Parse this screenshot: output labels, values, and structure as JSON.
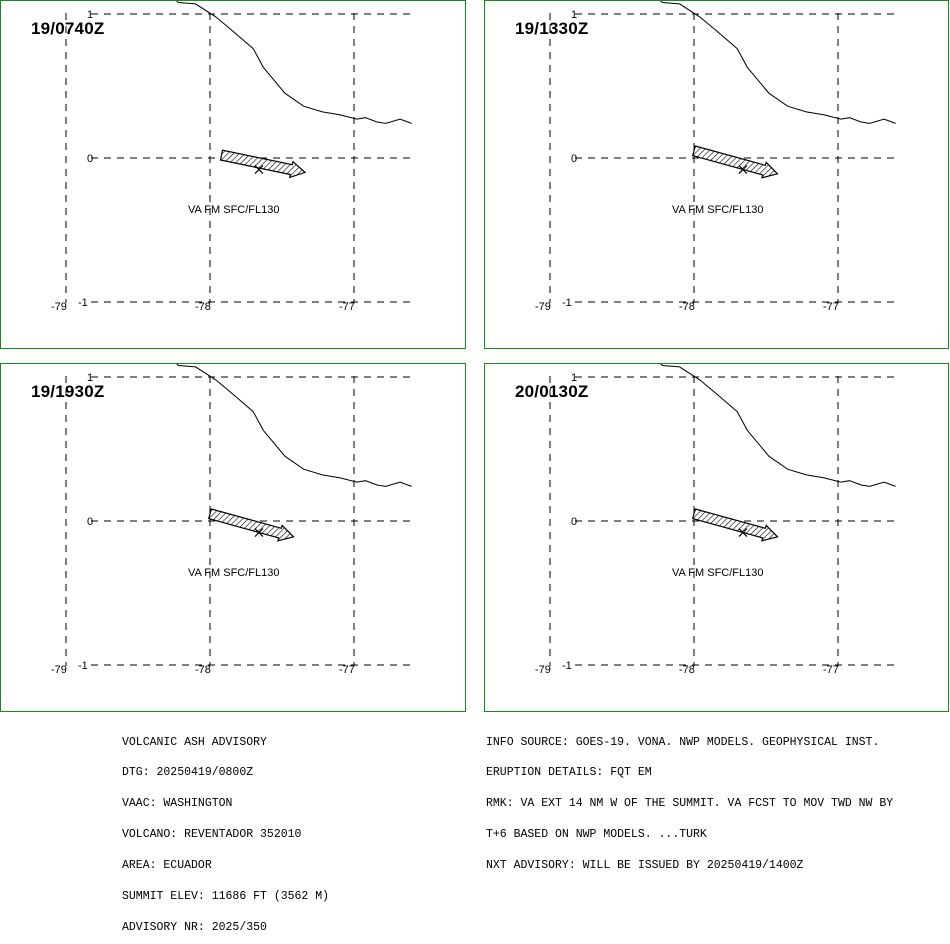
{
  "panels": [
    {
      "time": "19/0740Z",
      "va_label": "VA FM SFC/FL130",
      "arrow": {
        "tail": [
          -77.92,
          0.02
        ],
        "head": [
          -77.34,
          -0.1
        ]
      }
    },
    {
      "time": "19/1330Z",
      "va_label": "VA FM SFC/FL130",
      "arrow": {
        "tail": [
          -78.0,
          0.05
        ],
        "head": [
          -77.42,
          -0.11
        ]
      }
    },
    {
      "time": "19/1930Z",
      "va_label": "VA FM SFC/FL130",
      "arrow": {
        "tail": [
          -78.0,
          0.05
        ],
        "head": [
          -77.42,
          -0.11
        ]
      }
    },
    {
      "time": "20/0130Z",
      "va_label": "VA FM SFC/FL130",
      "arrow": {
        "tail": [
          -78.0,
          0.05
        ],
        "head": [
          -77.42,
          -0.11
        ]
      }
    }
  ],
  "axes": {
    "lon_ticks": [
      "-79",
      "-78",
      "-77"
    ],
    "lat_ticks": [
      "1",
      "0",
      "-1"
    ],
    "lon_values": [
      -79,
      -78,
      -77
    ],
    "lat_values": [
      1,
      0,
      -1
    ]
  },
  "volcano": {
    "lon": -77.66,
    "lat": -0.08,
    "symbol": "volcano-x-marker"
  },
  "coastline": [
    [
      -78.3,
      1.16
    ],
    [
      -78.22,
      1.08
    ],
    [
      -78.1,
      1.07
    ],
    [
      -77.96,
      0.98
    ],
    [
      -77.84,
      0.88
    ],
    [
      -77.7,
      0.76
    ],
    [
      -77.63,
      0.63
    ],
    [
      -77.48,
      0.45
    ],
    [
      -77.35,
      0.36
    ],
    [
      -77.22,
      0.32
    ],
    [
      -77.1,
      0.3
    ],
    [
      -76.98,
      0.27
    ],
    [
      -76.92,
      0.28
    ],
    [
      -76.84,
      0.25
    ],
    [
      -76.78,
      0.24
    ],
    [
      -76.68,
      0.27
    ],
    [
      -76.6,
      0.24
    ]
  ],
  "advisory_left": [
    "VOLCANIC ASH ADVISORY",
    "DTG: 20250419/0800Z",
    "VAAC: WASHINGTON",
    "VOLCANO: REVENTADOR 352010",
    "AREA: ECUADOR",
    "SUMMIT ELEV: 11686 FT (3562 M)",
    "ADVISORY NR: 2025/350"
  ],
  "advisory_right": [
    "INFO SOURCE: GOES-19. VONA. NWP MODELS. GEOPHYSICAL INST.",
    "ERUPTION DETAILS: FQT EM",
    "RMK: VA EXT 14 NM W OF THE SUMMIT. VA FCST TO MOV TWD NW BY",
    "T+6 BASED ON NWP MODELS. ...TURK",
    "NXT ADVISORY: WILL BE ISSUED BY 20250419/1400Z"
  ],
  "colors": {
    "panel_border": "#1a8a1a",
    "lines": "#000000",
    "background": "#ffffff"
  }
}
